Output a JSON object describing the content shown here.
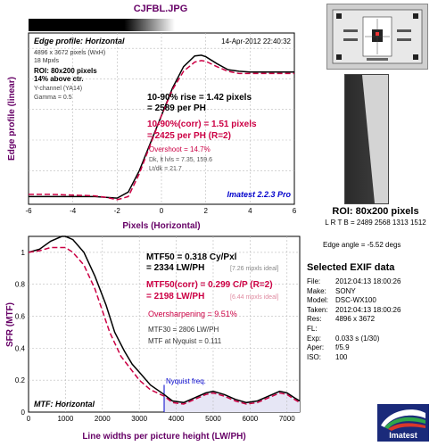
{
  "header": {
    "title": "CJFBL.JPG"
  },
  "colors": {
    "measured": "#000000",
    "corrected": "#cc0044",
    "label": "#660066",
    "blue": "#0000cc",
    "nyquist_fill": "#e6e6f5"
  },
  "edge_panel": {
    "title": "Edge profile: Horizontal",
    "date": "14-Apr-2012 22:40:32",
    "pixels": "4896 x 3672 pixels (WxH)",
    "mpxls": "18 Mpxls",
    "roi": "ROI: 80x200 pixels",
    "above": "14% above ctr.",
    "channel": "Y-channel  (YA14)",
    "gamma": "Gamma = 0.5",
    "rise_line1": "10-90% rise = 1.42 pixels",
    "rise_line2": "= 2589 per PH",
    "corr_line1": "10-90%(corr) = 1.51 pixels",
    "corr_line2": "= 2425 per PH  (R=2)",
    "overshoot": "Overshoot = 14.7%",
    "dk_lt": "Dk, lt lvls = 7.35, 159.6",
    "lt_dk": "Lt/dk = 21.7",
    "software": "Imatest 2.2.3 Pro",
    "ylabel": "Edge profile (linear)",
    "xlabel": "Pixels (Horizontal)"
  },
  "mtf_panel": {
    "title": "MTF: Horizontal",
    "mtf50_line1": "MTF50 = 0.318 Cy/Pxl",
    "mtf50_line2": "= 2334 LW/PH",
    "mtf50_ideal": "[7.26 mpxls ideal]",
    "mtf50c_line1": "MTF50(corr) = 0.299 C/P  (R=2)",
    "mtf50c_line2": "= 2198 LW/PH",
    "mtf50c_ideal": "[6.44 mpxls ideal]",
    "oversharp": "Oversharpening = 9.51%",
    "mtf30": "MTF30 = 2806 LW/PH",
    "nyquist": "MTF at Nyquist = 0.111",
    "nyquist_label": "Nyquist freq.",
    "ylabel": "SFR (MTF)",
    "xlabel": "Line widths per picture height (LW/PH)"
  },
  "chart_data": [
    {
      "type": "line",
      "title": "Edge profile: Horizontal",
      "xlabel": "Pixels (Horizontal)",
      "ylabel": "Edge profile (linear)",
      "xlim": [
        -6,
        6
      ],
      "x_ticks": [
        -6,
        -4,
        -2,
        0,
        2,
        4,
        6
      ],
      "grid": true,
      "series": [
        {
          "x": [
            -6,
            -5,
            -4,
            -3,
            -2.5,
            -2,
            -1.5,
            -1,
            -0.5,
            0,
            0.5,
            1,
            1.5,
            1.8,
            2,
            2.5,
            3,
            3.5,
            4,
            5,
            6
          ],
          "y": [
            0.03,
            0.03,
            0.03,
            0.03,
            0.025,
            0.02,
            0.06,
            0.2,
            0.38,
            0.56,
            0.74,
            0.88,
            0.95,
            0.955,
            0.945,
            0.9,
            0.86,
            0.85,
            0.845,
            0.845,
            0.845
          ]
        },
        {
          "x": [
            -6,
            -5,
            -4,
            -3,
            -2.5,
            -2,
            -1.5,
            -1,
            -0.5,
            0,
            0.5,
            1,
            1.5,
            1.8,
            2,
            2.5,
            3,
            3.5,
            4,
            5,
            6
          ],
          "y": [
            0.045,
            0.045,
            0.04,
            0.035,
            0.025,
            0.01,
            0.03,
            0.18,
            0.37,
            0.56,
            0.73,
            0.85,
            0.91,
            0.92,
            0.915,
            0.88,
            0.85,
            0.835,
            0.835,
            0.835,
            0.835
          ]
        }
      ]
    },
    {
      "type": "line",
      "title": "MTF: Horizontal",
      "xlabel": "Line widths per picture height (LW/PH)",
      "ylabel": "SFR (MTF)",
      "xlim": [
        0,
        7344
      ],
      "ylim": [
        0,
        1.1
      ],
      "x_ticks": [
        0,
        1000,
        2000,
        3000,
        4000,
        5000,
        6000,
        7000
      ],
      "y_ticks": [
        0,
        0.2,
        0.4,
        0.6,
        0.8,
        1
      ],
      "nyquist_x": 3672,
      "grid": true,
      "series": [
        {
          "x": [
            0,
            300,
            600,
            900,
            1000,
            1200,
            1500,
            1800,
            2100,
            2334,
            2600,
            2806,
            3000,
            3300,
            3672,
            3900,
            4200,
            4500,
            4800,
            5000,
            5300,
            5600,
            5900,
            6200,
            6500,
            6800,
            7000,
            7200,
            7344
          ],
          "y": [
            1.0,
            1.02,
            1.07,
            1.1,
            1.1,
            1.08,
            1.0,
            0.85,
            0.67,
            0.5,
            0.38,
            0.3,
            0.25,
            0.17,
            0.11,
            0.07,
            0.06,
            0.09,
            0.12,
            0.13,
            0.11,
            0.08,
            0.06,
            0.07,
            0.1,
            0.13,
            0.12,
            0.09,
            0.07
          ]
        },
        {
          "x": [
            0,
            300,
            600,
            900,
            1000,
            1200,
            1500,
            1800,
            2198,
            2500,
            2800,
            3000,
            3300,
            3672,
            3900,
            4200,
            4500,
            4800,
            5000,
            5300,
            5600,
            5900,
            6200,
            6500,
            6800,
            7000,
            7200,
            7344
          ],
          "y": [
            1.0,
            1.01,
            1.03,
            1.03,
            1.03,
            1.0,
            0.92,
            0.77,
            0.5,
            0.35,
            0.26,
            0.2,
            0.14,
            0.1,
            0.06,
            0.05,
            0.08,
            0.11,
            0.12,
            0.1,
            0.07,
            0.05,
            0.06,
            0.09,
            0.12,
            0.11,
            0.08,
            0.06
          ]
        }
      ]
    }
  ],
  "roi_panel": {
    "title": "ROI: 80x200 pixels",
    "lrtb": "L R T B = 2489 2568  1313 1512",
    "edge_angle": "Edge angle = -5.52 degs"
  },
  "exif": {
    "title": "Selected EXIF data",
    "rows": [
      {
        "label": "File:",
        "value": "2012:04:13 18:00:26"
      },
      {
        "label": "Make:",
        "value": "SONY"
      },
      {
        "label": "Model:",
        "value": "DSC-WX100"
      },
      {
        "label": "Taken:",
        "value": "2012:04:13 18:00:26"
      },
      {
        "label": "Res:",
        "value": "4896 x 3672"
      },
      {
        "label": "FL:",
        "value": ""
      },
      {
        "label": "Exp:",
        "value": "0.033 s  (1/30)"
      },
      {
        "label": "Aper:",
        "value": "f/5.9"
      },
      {
        "label": "ISO:",
        "value": "100"
      }
    ]
  },
  "logo": {
    "text": "Imatest"
  }
}
